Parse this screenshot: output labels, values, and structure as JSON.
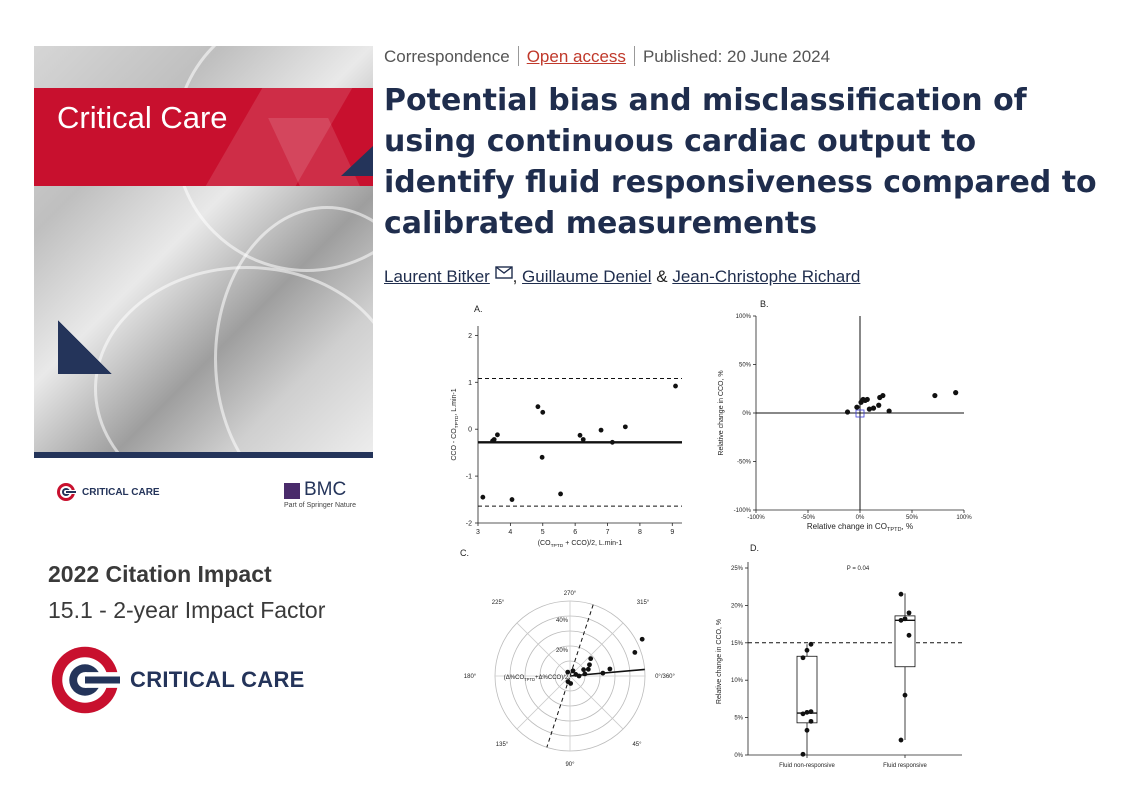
{
  "journal": {
    "cover_title": "Critical Care",
    "logo_small_text": "CRITICAL CARE",
    "publisher": "BMC",
    "publisher_sub": "Part of Springer Nature",
    "citation_title": "2022 Citation Impact",
    "impact_factor": "15.1 - 2-year Impact Factor",
    "logo_big_text": "CRITICAL CARE",
    "colors": {
      "brand_red": "#c8102e",
      "brand_navy": "#24345a"
    }
  },
  "article": {
    "type": "Correspondence",
    "access": "Open access",
    "published": "Published: 20 June 2024",
    "title": "Potential bias and misclassification of using continuous cardiac output to identify fluid responsiveness compared to calibrated measurements",
    "authors": [
      "Laurent Bitker",
      "Guillaume Deniel",
      "Jean-Christophe Richard"
    ],
    "author_sep": ",",
    "author_amp": "&",
    "mail_icon": "envelope-icon"
  },
  "chart_data": [
    {
      "panel": "A.",
      "type": "scatter",
      "xlabel": "(CO_TPTD + CCO)/2, L.min-1",
      "ylabel": "CCO - CO_TPTD, L.min-1",
      "xlim": [
        3,
        9.3
      ],
      "ylim": [
        -2,
        2.2
      ],
      "xticks": [
        "3",
        "4",
        "5",
        "6",
        "7",
        "8",
        "9"
      ],
      "yticks": [
        "-2",
        "-1",
        "0",
        "1",
        "2"
      ],
      "mean_bias": -0.28,
      "loa_upper": 1.08,
      "loa_lower": -1.64,
      "points": [
        [
          3.15,
          -1.45
        ],
        [
          3.45,
          -0.25
        ],
        [
          3.5,
          -0.22
        ],
        [
          3.6,
          -0.12
        ],
        [
          4.05,
          -1.5
        ],
        [
          4.85,
          0.48
        ],
        [
          5.0,
          0.36
        ],
        [
          4.98,
          -0.6
        ],
        [
          5.55,
          -1.38
        ],
        [
          6.15,
          -0.13
        ],
        [
          6.25,
          -0.22
        ],
        [
          6.8,
          -0.02
        ],
        [
          7.15,
          -0.28
        ],
        [
          7.55,
          0.05
        ],
        [
          9.1,
          0.92
        ]
      ]
    },
    {
      "panel": "B.",
      "type": "scatter",
      "xlabel": "Relative change in CO_TPTD, %",
      "ylabel": "Relative change in CCO, %",
      "xlim": [
        -100,
        100
      ],
      "ylim": [
        -100,
        100
      ],
      "xticks": [
        "-100%",
        "-50%",
        "0%",
        "50%",
        "100%"
      ],
      "yticks": [
        "-100%",
        "-50%",
        "0%",
        "50%",
        "100%"
      ],
      "points": [
        [
          -12,
          1
        ],
        [
          -3,
          6
        ],
        [
          1,
          11
        ],
        [
          3,
          14
        ],
        [
          5,
          13
        ],
        [
          7,
          14
        ],
        [
          9,
          4
        ],
        [
          13,
          5
        ],
        [
          18,
          8
        ],
        [
          19,
          16
        ],
        [
          22,
          18
        ],
        [
          28,
          2
        ],
        [
          72,
          18
        ],
        [
          92,
          21
        ]
      ]
    },
    {
      "panel": "C.",
      "type": "scatter",
      "subtype": "polar",
      "center_label": "(Δ%CO_TPTD+Δ%CCO)/2",
      "radial_ticks": [
        "20%",
        "40%"
      ],
      "angle_labels": [
        "270°",
        "315°",
        "0°/360°",
        "45°",
        "90°",
        "135°",
        "180°",
        "225°"
      ],
      "polar_points": [
        [
          0,
          6
        ],
        [
          8,
          10
        ],
        [
          15,
          4
        ],
        [
          20,
          13
        ],
        [
          25,
          10
        ],
        [
          30,
          15
        ],
        [
          40,
          18
        ],
        [
          5,
          22
        ],
        [
          10,
          27
        ],
        [
          20,
          46
        ],
        [
          27,
          54
        ],
        [
          60,
          4
        ],
        [
          120,
          3
        ],
        [
          250,
          4
        ],
        [
          275,
          5
        ]
      ]
    },
    {
      "panel": "D.",
      "type": "box",
      "ylabel": "Relative change in CCO, %",
      "categories": [
        "Fluid non-responsive",
        "Fluid responsive"
      ],
      "yticks": [
        "0%",
        "5%",
        "10%",
        "15%",
        "20%",
        "25%"
      ],
      "ylim": [
        0,
        25
      ],
      "threshold": 15,
      "p_value": "P = 0.04",
      "boxes": [
        {
          "q1": 4.3,
          "median": 5.6,
          "q3": 13.2,
          "min": 0,
          "max": 14.8
        },
        {
          "q1": 11.8,
          "median": 18.0,
          "q3": 18.6,
          "min": 2,
          "max": 21.6
        }
      ],
      "points": [
        [
          0.1,
          3.3,
          4.5,
          5.5,
          5.7,
          5.8,
          13.0,
          14.0,
          14.8
        ],
        [
          2.0,
          8.0,
          16.0,
          18.0,
          18.2,
          19.0,
          21.5
        ]
      ]
    }
  ]
}
